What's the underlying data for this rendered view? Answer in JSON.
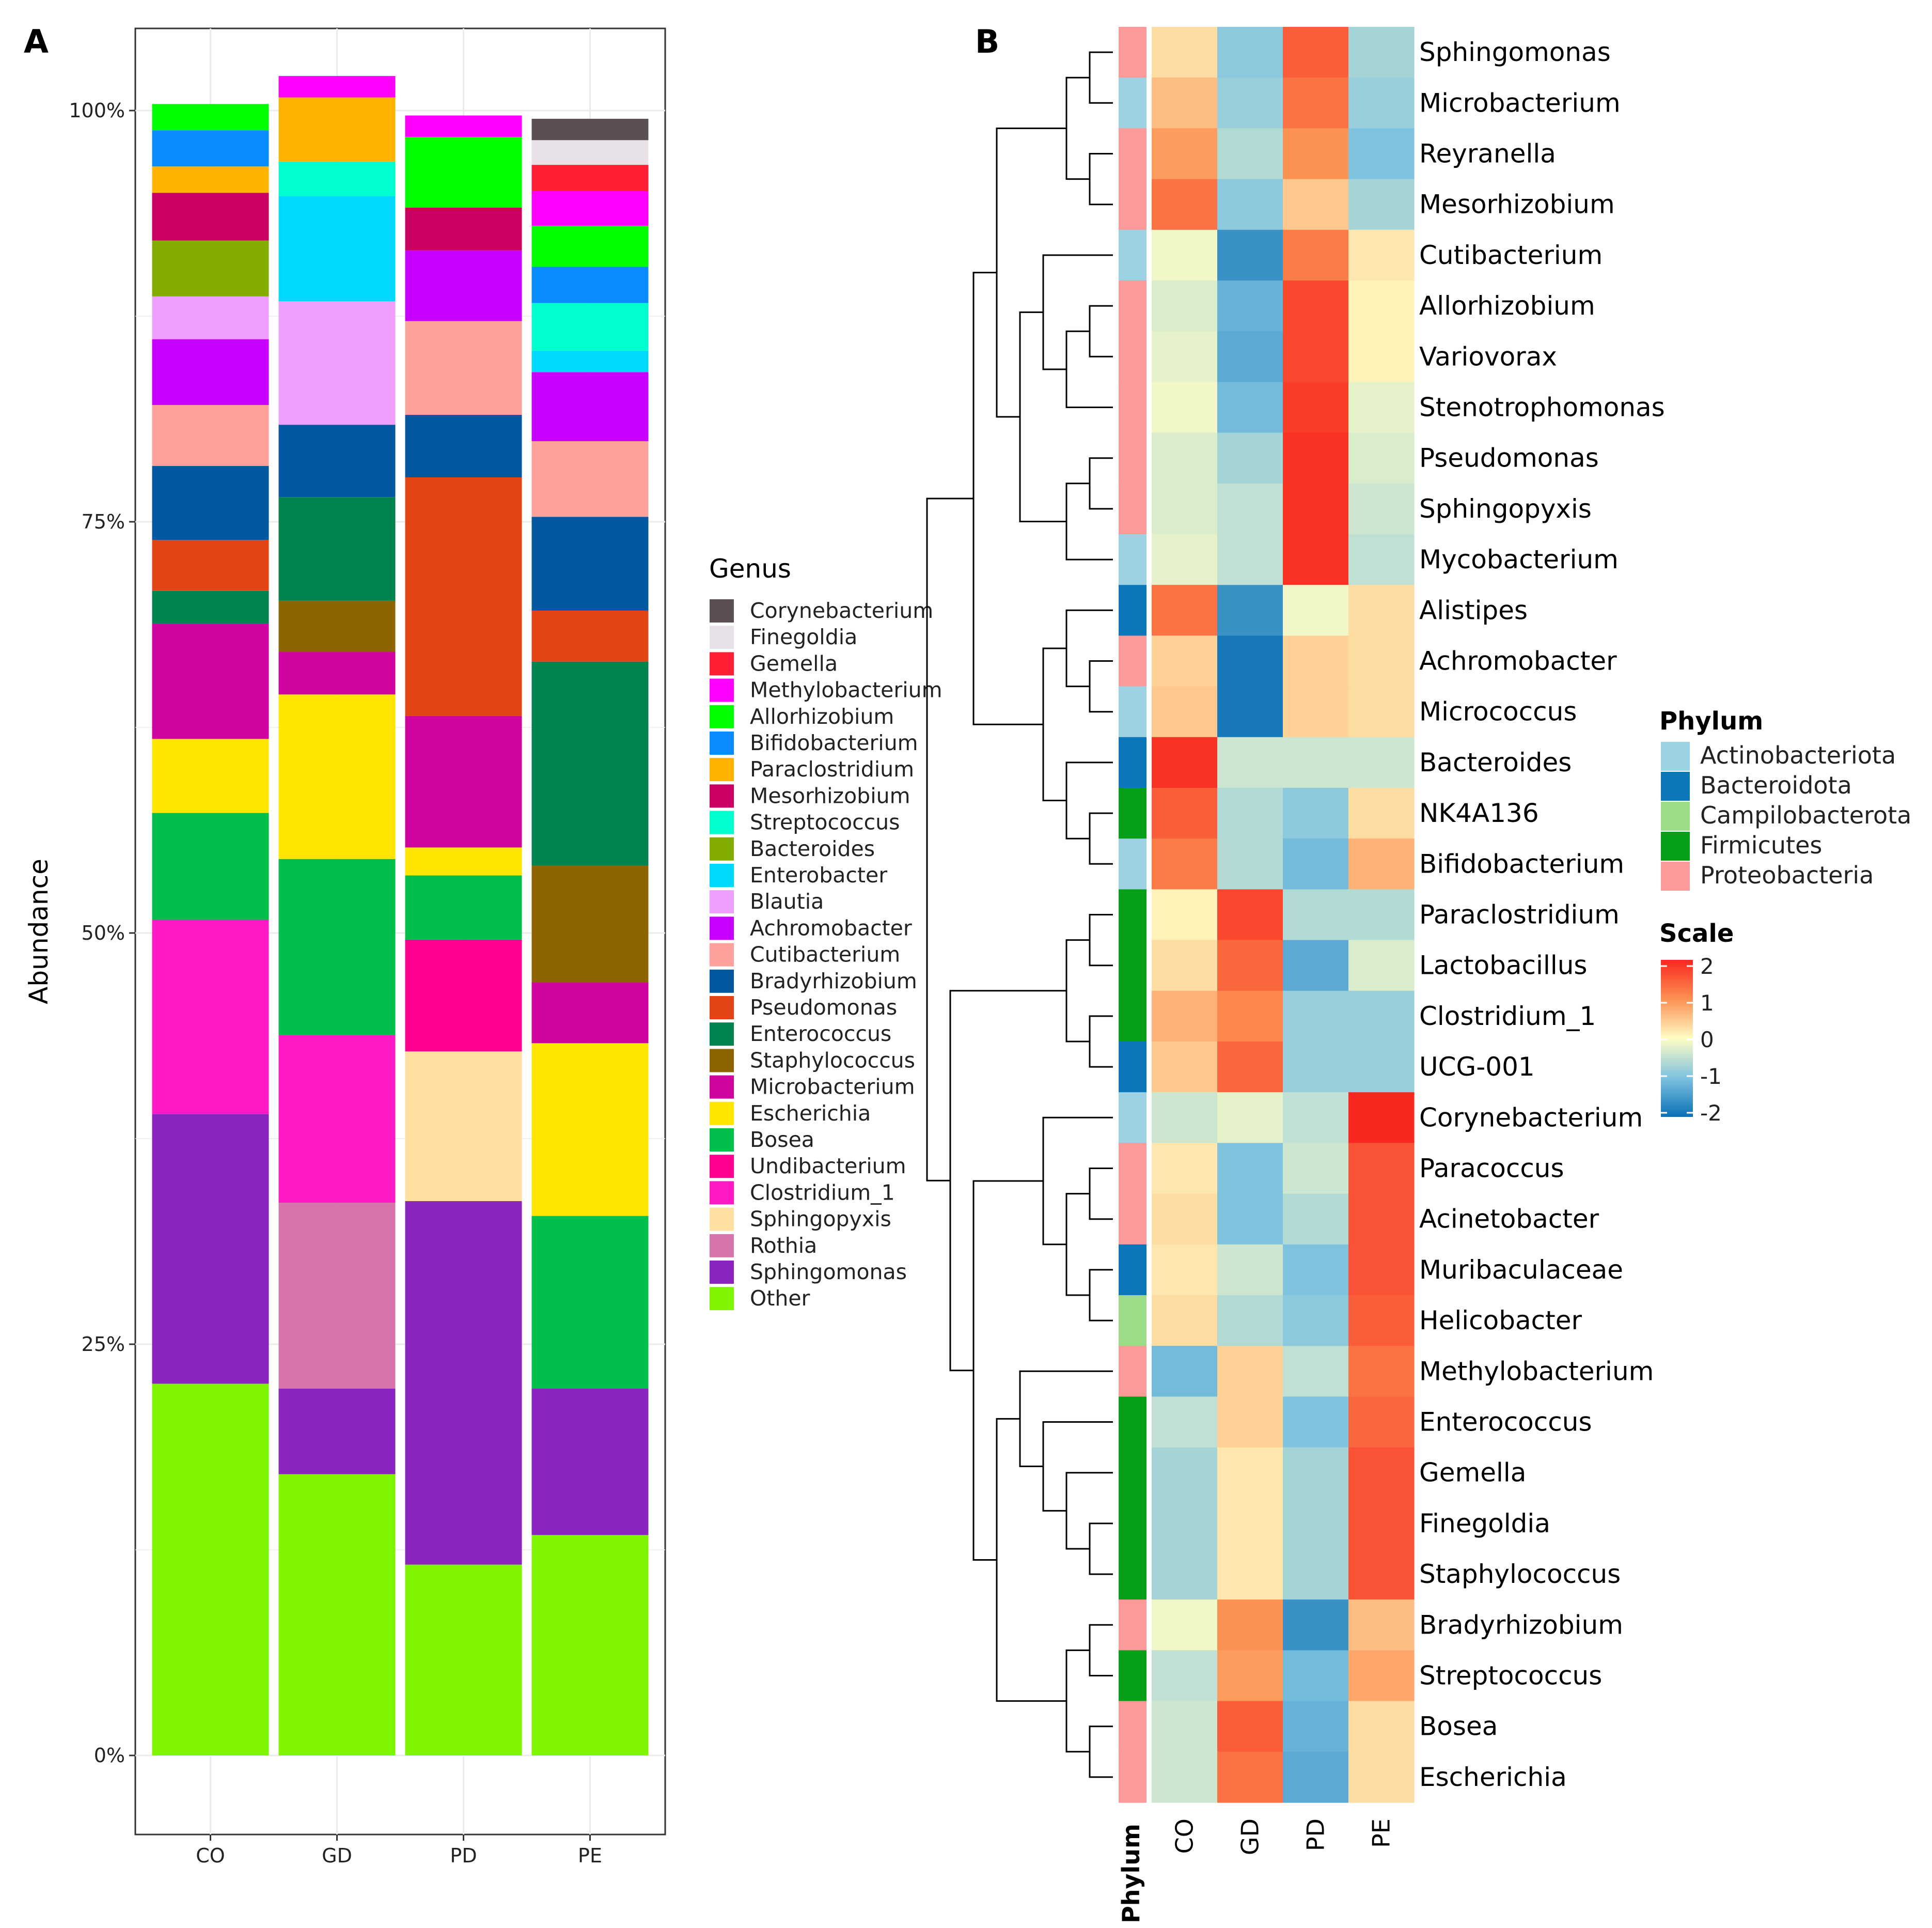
{
  "panels": {
    "a_label": "A",
    "b_label": "B"
  },
  "chart_data": [
    {
      "type": "bar",
      "stacked": true,
      "title": "",
      "xlabel": "",
      "ylabel": "Abundance",
      "ylim": [
        0,
        1
      ],
      "y_ticks": [
        "0%",
        "25%",
        "50%",
        "75%",
        "100%"
      ],
      "categories": [
        "CO",
        "GD",
        "PD",
        "PE"
      ],
      "legend_title": "Genus",
      "legend_position": "right",
      "series": [
        {
          "name": "Other",
          "color": "#7FF500",
          "values": [
            0.226,
            0.171,
            0.116,
            0.134
          ]
        },
        {
          "name": "Sphingomonas",
          "color": "#8A26BF",
          "values": [
            0.164,
            0.052,
            0.221,
            0.089
          ]
        },
        {
          "name": "Rothia",
          "color": "#D774A9",
          "values": [
            0,
            0.113,
            0,
            0
          ]
        },
        {
          "name": "Sphingopyxis",
          "color": "#FFE0A1",
          "values": [
            0,
            0,
            0.091,
            0
          ]
        },
        {
          "name": "Clostridium_1",
          "color": "#FF1AC6",
          "values": [
            0.118,
            0.102,
            0,
            0
          ]
        },
        {
          "name": "Undibacterium",
          "color": "#FF0090",
          "values": [
            0,
            0,
            0.068,
            0
          ]
        },
        {
          "name": "Bosea",
          "color": "#00C04B",
          "values": [
            0.065,
            0.107,
            0.039,
            0.105
          ]
        },
        {
          "name": "Escherichia",
          "color": "#FFE500",
          "values": [
            0.045,
            0.1,
            0.017,
            0.105
          ]
        },
        {
          "name": "Microbacterium",
          "color": "#D0039F",
          "values": [
            0.07,
            0.026,
            0.08,
            0.037
          ]
        },
        {
          "name": "Staphylococcus",
          "color": "#8C6500",
          "values": [
            0,
            0.031,
            0,
            0.071
          ]
        },
        {
          "name": "Enterococcus",
          "color": "#00834E",
          "values": [
            0.02,
            0.063,
            0,
            0.124
          ]
        },
        {
          "name": "Pseudomonas",
          "color": "#E24415",
          "values": [
            0.031,
            0,
            0.145,
            0.031
          ]
        },
        {
          "name": "Bradyrhizobium",
          "color": "#0358A0",
          "values": [
            0.045,
            0.044,
            0.038,
            0.057
          ]
        },
        {
          "name": "Cutibacterium",
          "color": "#FFA19B",
          "values": [
            0.037,
            0,
            0.057,
            0.046
          ]
        },
        {
          "name": "Achromobacter",
          "color": "#C800FF",
          "values": [
            0.04,
            0,
            0.043,
            0.042
          ]
        },
        {
          "name": "Blautia",
          "color": "#EF9FFF",
          "values": [
            0.026,
            0.075,
            0,
            0
          ]
        },
        {
          "name": "Enterobacter",
          "color": "#00D9FF",
          "values": [
            0,
            0.064,
            0,
            0.013
          ]
        },
        {
          "name": "Bacteroides",
          "color": "#82AC00",
          "values": [
            0.034,
            0,
            0,
            0
          ]
        },
        {
          "name": "Streptococcus",
          "color": "#00FFCE",
          "values": [
            0,
            0.021,
            0,
            0.029
          ]
        },
        {
          "name": "Mesorhizobium",
          "color": "#CA0062",
          "values": [
            0.029,
            0,
            0.026,
            0
          ]
        },
        {
          "name": "Paraclostridium",
          "color": "#FFB300",
          "values": [
            0.016,
            0.039,
            0,
            0
          ]
        },
        {
          "name": "Bifidobacterium",
          "color": "#0A8CFF",
          "values": [
            0.022,
            0,
            0,
            0.022
          ]
        },
        {
          "name": "Allorhizobium",
          "color": "#00FF00",
          "values": [
            0.016,
            0,
            0.043,
            0.025
          ]
        },
        {
          "name": "Methylobacterium",
          "color": "#FF00FF",
          "values": [
            0,
            0.013,
            0.013,
            0.021
          ]
        },
        {
          "name": "Gemella",
          "color": "#FF2036",
          "values": [
            0,
            0,
            0,
            0.016
          ]
        },
        {
          "name": "Finegoldia",
          "color": "#E8E2E8",
          "values": [
            0,
            0,
            0,
            0.015
          ]
        },
        {
          "name": "Corynebacterium",
          "color": "#5C4F54",
          "values": [
            0,
            0,
            0,
            0.013
          ]
        }
      ]
    },
    {
      "type": "heatmap",
      "title": "",
      "columns": [
        "CO",
        "GD",
        "PD",
        "PE"
      ],
      "annotation_title": "Phylum",
      "scale_title": "Scale",
      "scale_range": [
        -2,
        2
      ],
      "scale_ticks": [
        "2",
        "1",
        "0",
        "-1",
        "-2"
      ],
      "phylum_legend": [
        {
          "name": "Actinobacteriota",
          "color": "#9DD1E4"
        },
        {
          "name": "Bacteroidota",
          "color": "#0C76BA"
        },
        {
          "name": "Campilobacterota",
          "color": "#9DDC86"
        },
        {
          "name": "Firmicutes",
          "color": "#05A017"
        },
        {
          "name": "Proteobacteria",
          "color": "#FB9A99"
        }
      ],
      "rows": [
        {
          "genus": "Sphingomonas",
          "phylum": "Proteobacteria",
          "values": [
            0.3,
            -0.9,
            1.5,
            -0.7
          ]
        },
        {
          "genus": "Microbacterium",
          "phylum": "Actinobacteriota",
          "values": [
            0.6,
            -0.8,
            1.3,
            -0.8
          ]
        },
        {
          "name_note": "",
          "genus": "Reyranella",
          "phylum": "Proteobacteria",
          "values": [
            0.9,
            -0.6,
            1.0,
            -1.0
          ]
        },
        {
          "genus": "Mesorhizobium",
          "phylum": "Proteobacteria",
          "values": [
            1.3,
            -0.9,
            0.5,
            -0.7
          ]
        },
        {
          "genus": "Cutibacterium",
          "phylum": "Actinobacteriota",
          "values": [
            -0.1,
            -1.6,
            1.2,
            0.2
          ]
        },
        {
          "genus": "Allorhizobium",
          "phylum": "Proteobacteria",
          "values": [
            -0.3,
            -1.2,
            1.7,
            0.1
          ]
        },
        {
          "genus": "Variovorax",
          "phylum": "Proteobacteria",
          "values": [
            -0.2,
            -1.3,
            1.7,
            0.1
          ]
        },
        {
          "genus": "Stenotrophomonas",
          "phylum": "Proteobacteria",
          "values": [
            -0.1,
            -1.1,
            1.8,
            -0.2
          ]
        },
        {
          "genus": "Pseudomonas",
          "phylum": "Proteobacteria",
          "values": [
            -0.3,
            -0.7,
            1.9,
            -0.3
          ]
        },
        {
          "genus": "Sphingopyxis",
          "phylum": "Proteobacteria",
          "values": [
            -0.3,
            -0.5,
            1.9,
            -0.4
          ]
        },
        {
          "genus": "Mycobacterium",
          "phylum": "Actinobacteriota",
          "values": [
            -0.2,
            -0.5,
            1.9,
            -0.5
          ]
        },
        {
          "genus": "Alistipes",
          "phylum": "Bacteroidota",
          "values": [
            1.3,
            -1.6,
            -0.1,
            0.3
          ]
        },
        {
          "genus": "Achromobacter",
          "phylum": "Proteobacteria",
          "values": [
            0.4,
            -1.9,
            0.4,
            0.3
          ]
        },
        {
          "genus": "Micrococcus",
          "phylum": "Actinobacteriota",
          "values": [
            0.5,
            -1.9,
            0.4,
            0.3
          ]
        },
        {
          "genus": "Bacteroides",
          "phylum": "Bacteroidota",
          "values": [
            1.9,
            -0.4,
            -0.4,
            -0.4
          ]
        },
        {
          "genus": "NK4A136",
          "phylum": "Firmicutes",
          "values": [
            1.5,
            -0.6,
            -0.9,
            0.3
          ]
        },
        {
          "genus": "Bifidobacterium",
          "phylum": "Actinobacteriota",
          "values": [
            1.2,
            -0.6,
            -1.1,
            0.7
          ]
        },
        {
          "genus": "Paraclostridium",
          "phylum": "Firmicutes",
          "values": [
            0.1,
            1.7,
            -0.6,
            -0.6
          ]
        },
        {
          "genus": "Lactobacillus",
          "phylum": "Firmicutes",
          "values": [
            0.3,
            1.4,
            -1.3,
            -0.3
          ]
        },
        {
          "genus": "Clostridium_1",
          "phylum": "Firmicutes",
          "values": [
            0.7,
            1.1,
            -0.8,
            -0.8
          ]
        },
        {
          "genus": "UCG-001",
          "phylum": "Bacteroidota",
          "values": [
            0.5,
            1.4,
            -0.8,
            -0.8
          ]
        },
        {
          "genus": "Corynebacterium",
          "phylum": "Actinobacteriota",
          "values": [
            -0.4,
            -0.2,
            -0.5,
            2.0
          ]
        },
        {
          "genus": "Paracoccus",
          "phylum": "Proteobacteria",
          "values": [
            0.2,
            -1.0,
            -0.4,
            1.6
          ]
        },
        {
          "genus": "Acinetobacter",
          "phylum": "Proteobacteria",
          "values": [
            0.3,
            -1.0,
            -0.6,
            1.6
          ]
        },
        {
          "genus": "Muribaculaceae",
          "phylum": "Bacteroidota",
          "values": [
            0.2,
            -0.4,
            -1.0,
            1.6
          ]
        },
        {
          "genus": "Helicobacter",
          "phylum": "Campilobacterota",
          "values": [
            0.3,
            -0.6,
            -0.9,
            1.5
          ]
        },
        {
          "genus": "Methylobacterium",
          "phylum": "Proteobacteria",
          "values": [
            -1.1,
            0.4,
            -0.5,
            1.3
          ]
        },
        {
          "genus": "Enterococcus",
          "phylum": "Firmicutes",
          "values": [
            -0.5,
            0.4,
            -1.0,
            1.4
          ]
        },
        {
          "genus": "Gemella",
          "phylum": "Firmicutes",
          "values": [
            -0.7,
            0.2,
            -0.7,
            1.6
          ]
        },
        {
          "genus": "Finegoldia",
          "phylum": "Firmicutes",
          "values": [
            -0.7,
            0.2,
            -0.7,
            1.6
          ]
        },
        {
          "genus": "Staphylococcus",
          "phylum": "Firmicutes",
          "values": [
            -0.7,
            0.2,
            -0.7,
            1.6
          ]
        },
        {
          "genus": "Bradyrhizobium",
          "phylum": "Proteobacteria",
          "values": [
            -0.1,
            1.0,
            -1.6,
            0.6
          ]
        },
        {
          "genus": "Streptococcus",
          "phylum": "Firmicutes",
          "values": [
            -0.5,
            0.9,
            -1.1,
            0.8
          ]
        },
        {
          "genus": "Bosea",
          "phylum": "Proteobacteria",
          "values": [
            -0.4,
            1.5,
            -1.2,
            0.3
          ]
        },
        {
          "genus": "Escherichia",
          "phylum": "Proteobacteria",
          "values": [
            -0.4,
            1.3,
            -1.3,
            0.3
          ]
        }
      ]
    }
  ]
}
